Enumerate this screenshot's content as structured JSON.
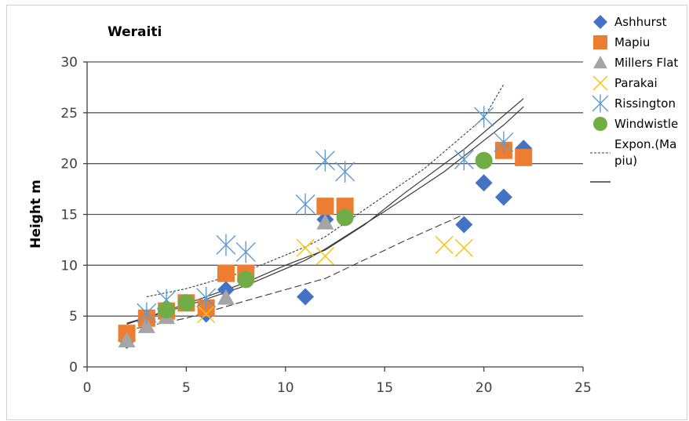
{
  "chart_data": {
    "type": "scatter",
    "title": "Weraiti",
    "xlabel": "",
    "ylabel": "Height m",
    "xlim": [
      0,
      25
    ],
    "ylim": [
      0,
      30
    ],
    "xticks": [
      "0",
      "5",
      "10",
      "15",
      "20",
      "25"
    ],
    "yticks": [
      "0",
      "5",
      "10",
      "15",
      "20",
      "25",
      "30"
    ],
    "grid": "horizontal",
    "legend_position": "right",
    "series": [
      {
        "name": "Ashhurst",
        "marker": "diamond",
        "color": "#4472C4",
        "points": [
          [
            2,
            2.6
          ],
          [
            3,
            4.5
          ],
          [
            4,
            5.6
          ],
          [
            6,
            5.2
          ],
          [
            7,
            7.6
          ],
          [
            11,
            6.9
          ],
          [
            12,
            14.5
          ],
          [
            19,
            14.0
          ],
          [
            20,
            18.1
          ],
          [
            21,
            16.7
          ],
          [
            22,
            21.5
          ]
        ]
      },
      {
        "name": "Mapiu",
        "marker": "square",
        "color": "#ED7D31",
        "points": [
          [
            2,
            3.3
          ],
          [
            3,
            4.8
          ],
          [
            4,
            5.5
          ],
          [
            5,
            6.3
          ],
          [
            6,
            5.8
          ],
          [
            7,
            9.2
          ],
          [
            8,
            9.2
          ],
          [
            12,
            15.8
          ],
          [
            13,
            15.8
          ],
          [
            21,
            21.3
          ],
          [
            22,
            20.6
          ]
        ]
      },
      {
        "name": "Millers Flat",
        "marker": "triangle",
        "color": "#A5A5A5",
        "points": [
          [
            2,
            2.6
          ],
          [
            3,
            4.0
          ],
          [
            4,
            4.9
          ],
          [
            7,
            6.8
          ],
          [
            12,
            14.2
          ]
        ]
      },
      {
        "name": "Parakai",
        "marker": "x",
        "color": "#FFC000",
        "points": [
          [
            6,
            5.2
          ],
          [
            11,
            11.7
          ],
          [
            12,
            10.9
          ],
          [
            18,
            12.0
          ],
          [
            19,
            11.7
          ]
        ]
      },
      {
        "name": "Rissington",
        "marker": "star",
        "color": "#5B9BD5",
        "points": [
          [
            3,
            5.3
          ],
          [
            4,
            6.6
          ],
          [
            6,
            6.8
          ],
          [
            7,
            12.0
          ],
          [
            8,
            11.3
          ],
          [
            11,
            16.0
          ],
          [
            12,
            20.3
          ],
          [
            13,
            19.2
          ],
          [
            19,
            20.4
          ],
          [
            20,
            24.6
          ],
          [
            21,
            22.1
          ]
        ]
      },
      {
        "name": "Windwistle",
        "marker": "circle",
        "color": "#70AD47",
        "points": [
          [
            4,
            5.6
          ],
          [
            5,
            6.3
          ],
          [
            8,
            8.6
          ],
          [
            13,
            14.7
          ],
          [
            20,
            20.3
          ]
        ]
      }
    ],
    "trendlines": [
      {
        "legend": "Expon.(Mapiu)",
        "style": "dotted",
        "points": [
          [
            3,
            6.9
          ],
          [
            5,
            7.7
          ],
          [
            8,
            9.4
          ],
          [
            11,
            11.8
          ],
          [
            12,
            12.8
          ],
          [
            14,
            15.5
          ],
          [
            17,
            19.5
          ],
          [
            20,
            24.5
          ],
          [
            21,
            27.8
          ]
        ]
      },
      {
        "legend": "",
        "style": "solid",
        "points": [
          [
            2,
            4.2
          ],
          [
            5,
            6.2
          ],
          [
            8,
            8.3
          ],
          [
            10,
            10.0
          ],
          [
            12,
            11.5
          ],
          [
            14,
            14.0
          ],
          [
            16,
            17.1
          ],
          [
            19,
            21.4
          ],
          [
            22,
            26.4
          ]
        ]
      },
      {
        "legend": "",
        "style": "solid",
        "points": [
          [
            2,
            4.3
          ],
          [
            5,
            6.0
          ],
          [
            8,
            8.0
          ],
          [
            11,
            10.5
          ],
          [
            12,
            11.6
          ],
          [
            15,
            15.3
          ],
          [
            18,
            19.2
          ],
          [
            21,
            23.8
          ],
          [
            22,
            25.6
          ]
        ]
      },
      {
        "legend": "",
        "style": "dashed",
        "points": [
          [
            2,
            3.6
          ],
          [
            5,
            4.8
          ],
          [
            8,
            6.5
          ],
          [
            12,
            8.7
          ],
          [
            16,
            12.4
          ],
          [
            19,
            15.0
          ]
        ]
      }
    ],
    "legend": [
      "Ashhurst",
      "Mapiu",
      "Millers Flat",
      "Parakai",
      "Rissington",
      "Windwistle",
      "Expon.(Ma",
      "piu)"
    ]
  }
}
